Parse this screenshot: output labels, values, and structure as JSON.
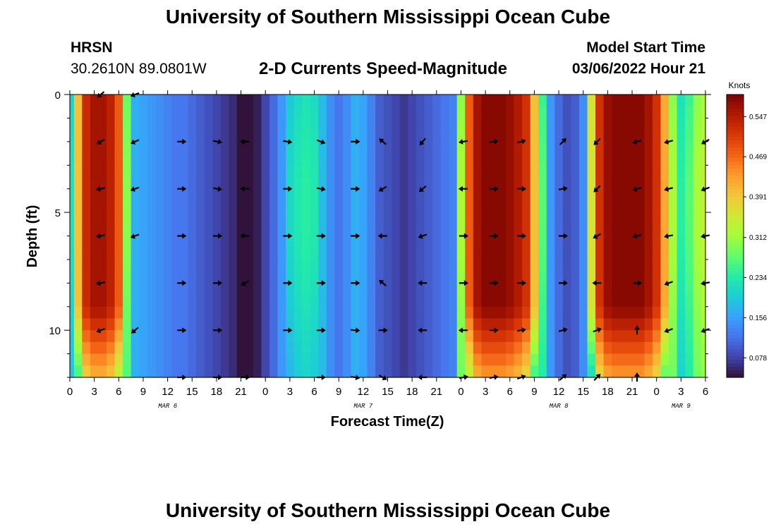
{
  "header": {
    "title": "University of Southern Mississippi Ocean Cube",
    "station": "HRSN",
    "coords": "30.2610N  89.0801W",
    "subtitle": "2-D Currents Speed-Magnitude",
    "model_start_label": "Model Start Time",
    "model_start_value": "03/06/2022 Hour 21"
  },
  "footer": {
    "title": "University of Southern Mississippi Ocean Cube"
  },
  "colors": {
    "colormap": [
      "#30123b",
      "#4145ab",
      "#4675ed",
      "#39a2fc",
      "#1bcfd4",
      "#24eca6",
      "#61fc6c",
      "#a4fc3b",
      "#d1e834",
      "#f3c63a",
      "#fe9b2d",
      "#f36315",
      "#d93806",
      "#b11901",
      "#7a0402"
    ],
    "arrow": "#000000"
  },
  "chart_data": {
    "type": "heatmap",
    "title": "2-D Currents Speed-Magnitude",
    "xlabel": "Forecast Time(Z)",
    "ylabel": "Depth (ft)",
    "x_range_hours": [
      0,
      78
    ],
    "y_range_ft": [
      0,
      12
    ],
    "y_ticks": [
      0,
      5,
      10
    ],
    "x_tick_labels": [
      "0",
      "3",
      "6",
      "9",
      "12",
      "15",
      "18",
      "21",
      "0",
      "3",
      "6",
      "9",
      "12",
      "15",
      "18",
      "21",
      "0",
      "3",
      "6",
      "9",
      "12",
      "15",
      "18",
      "21",
      "0",
      "3",
      "6"
    ],
    "date_labels": [
      {
        "label": "MAR 6",
        "hour": 12
      },
      {
        "label": "MAR 7",
        "hour": 36
      },
      {
        "label": "MAR 8",
        "hour": 60
      },
      {
        "label": "MAR 9",
        "hour": 75
      }
    ],
    "colorbar": {
      "title": "Knots",
      "range": [
        0.04,
        0.59
      ],
      "tick_labels": [
        "0.547",
        "0.469",
        "0.391",
        "0.312",
        "0.234",
        "0.156",
        "0.078"
      ],
      "tick_values": [
        0.547,
        0.469,
        0.391,
        0.312,
        0.234,
        0.156,
        0.078
      ]
    },
    "speed_profile_hours": [
      0,
      1,
      2,
      3,
      4,
      5,
      6,
      7,
      8,
      9,
      10,
      11,
      12,
      13,
      14,
      15,
      16,
      17,
      18,
      19,
      20,
      21,
      22,
      23,
      24,
      25,
      26,
      27,
      28,
      29,
      30,
      31,
      32,
      33,
      34,
      35,
      36,
      37,
      38,
      39,
      40,
      41,
      42,
      43,
      44,
      45,
      46,
      47,
      48,
      49,
      50,
      51,
      52,
      53,
      54,
      55,
      56,
      57,
      58,
      59,
      60,
      61,
      62,
      63,
      64,
      65,
      66,
      67,
      68,
      69,
      70,
      71,
      72,
      73,
      74,
      75,
      76,
      77,
      78
    ],
    "speed_surface_knots": [
      0.2,
      0.4,
      0.53,
      0.56,
      0.56,
      0.54,
      0.48,
      0.28,
      0.17,
      0.16,
      0.15,
      0.14,
      0.13,
      0.12,
      0.12,
      0.11,
      0.1,
      0.09,
      0.08,
      0.07,
      0.06,
      0.04,
      0.03,
      0.05,
      0.08,
      0.11,
      0.15,
      0.19,
      0.21,
      0.22,
      0.21,
      0.18,
      0.14,
      0.12,
      0.14,
      0.17,
      0.16,
      0.13,
      0.1,
      0.09,
      0.08,
      0.07,
      0.08,
      0.09,
      0.1,
      0.11,
      0.12,
      0.13,
      0.3,
      0.48,
      0.56,
      0.58,
      0.58,
      0.58,
      0.57,
      0.55,
      0.52,
      0.4,
      0.25,
      0.15,
      0.11,
      0.09,
      0.1,
      0.14,
      0.36,
      0.52,
      0.57,
      0.58,
      0.58,
      0.58,
      0.58,
      0.56,
      0.52,
      0.42,
      0.3,
      0.22,
      0.25,
      0.3,
      0.32
    ],
    "arrows": [
      {
        "hour": 3.8,
        "depth_ft": 0,
        "angle_deg": 220,
        "speed_knots": 0.52
      },
      {
        "hour": 8.0,
        "depth_ft": 0,
        "angle_deg": 200,
        "speed_knots": 0.17
      },
      {
        "hour": 3.8,
        "depth_ft": 2,
        "angle_deg": 210,
        "speed_knots": 0.52
      },
      {
        "hour": 8.0,
        "depth_ft": 2,
        "angle_deg": 205,
        "speed_knots": 0.17
      },
      {
        "hour": 13.7,
        "depth_ft": 2,
        "angle_deg": 0,
        "speed_knots": 0.12
      },
      {
        "hour": 18.1,
        "depth_ft": 2,
        "angle_deg": 350,
        "speed_knots": 0.08
      },
      {
        "hour": 21.5,
        "depth_ft": 2,
        "angle_deg": 180,
        "speed_knots": 0.05
      },
      {
        "hour": 26.7,
        "depth_ft": 2,
        "angle_deg": 350,
        "speed_knots": 0.15
      },
      {
        "hour": 30.8,
        "depth_ft": 2,
        "angle_deg": 340,
        "speed_knots": 0.21
      },
      {
        "hour": 35.0,
        "depth_ft": 2,
        "angle_deg": 0,
        "speed_knots": 0.15
      },
      {
        "hour": 38.4,
        "depth_ft": 2,
        "angle_deg": 140,
        "speed_knots": 0.13
      },
      {
        "hour": 43.3,
        "depth_ft": 2,
        "angle_deg": 230,
        "speed_knots": 0.09
      },
      {
        "hour": 48.3,
        "depth_ft": 2,
        "angle_deg": 190,
        "speed_knots": 0.13
      },
      {
        "hour": 52.0,
        "depth_ft": 2,
        "angle_deg": 10,
        "speed_knots": 0.58
      },
      {
        "hour": 55.4,
        "depth_ft": 2,
        "angle_deg": 15,
        "speed_knots": 0.57
      },
      {
        "hour": 60.5,
        "depth_ft": 2,
        "angle_deg": 45,
        "speed_knots": 0.15
      },
      {
        "hour": 64.7,
        "depth_ft": 2,
        "angle_deg": 225,
        "speed_knots": 0.36
      },
      {
        "hour": 69.6,
        "depth_ft": 2,
        "angle_deg": 195,
        "speed_knots": 0.58
      },
      {
        "hour": 73.5,
        "depth_ft": 2,
        "angle_deg": 195,
        "speed_knots": 0.42
      },
      {
        "hour": 78.0,
        "depth_ft": 2,
        "angle_deg": 210,
        "speed_knots": 0.32
      },
      {
        "hour": 3.8,
        "depth_ft": 4,
        "angle_deg": 190,
        "speed_knots": 0.52
      },
      {
        "hour": 8.0,
        "depth_ft": 4,
        "angle_deg": 200,
        "speed_knots": 0.17
      },
      {
        "hour": 13.7,
        "depth_ft": 4,
        "angle_deg": 0,
        "speed_knots": 0.12
      },
      {
        "hour": 18.1,
        "depth_ft": 4,
        "angle_deg": 350,
        "speed_knots": 0.08
      },
      {
        "hour": 21.5,
        "depth_ft": 4,
        "angle_deg": 180,
        "speed_knots": 0.05
      },
      {
        "hour": 26.7,
        "depth_ft": 4,
        "angle_deg": 0,
        "speed_knots": 0.15
      },
      {
        "hour": 30.8,
        "depth_ft": 4,
        "angle_deg": 350,
        "speed_knots": 0.21
      },
      {
        "hour": 35.0,
        "depth_ft": 4,
        "angle_deg": 0,
        "speed_knots": 0.15
      },
      {
        "hour": 38.4,
        "depth_ft": 4,
        "angle_deg": 210,
        "speed_knots": 0.13
      },
      {
        "hour": 43.3,
        "depth_ft": 4,
        "angle_deg": 220,
        "speed_knots": 0.09
      },
      {
        "hour": 48.3,
        "depth_ft": 4,
        "angle_deg": 180,
        "speed_knots": 0.13
      },
      {
        "hour": 52.0,
        "depth_ft": 4,
        "angle_deg": 0,
        "speed_knots": 0.58
      },
      {
        "hour": 55.4,
        "depth_ft": 4,
        "angle_deg": 0,
        "speed_knots": 0.57
      },
      {
        "hour": 60.5,
        "depth_ft": 4,
        "angle_deg": 10,
        "speed_knots": 0.15
      },
      {
        "hour": 64.7,
        "depth_ft": 4,
        "angle_deg": 225,
        "speed_knots": 0.36
      },
      {
        "hour": 69.6,
        "depth_ft": 4,
        "angle_deg": 195,
        "speed_knots": 0.58
      },
      {
        "hour": 73.5,
        "depth_ft": 4,
        "angle_deg": 195,
        "speed_knots": 0.42
      },
      {
        "hour": 78.0,
        "depth_ft": 4,
        "angle_deg": 200,
        "speed_knots": 0.32
      },
      {
        "hour": 3.8,
        "depth_ft": 6,
        "angle_deg": 190,
        "speed_knots": 0.52
      },
      {
        "hour": 8.0,
        "depth_ft": 6,
        "angle_deg": 200,
        "speed_knots": 0.17
      },
      {
        "hour": 13.7,
        "depth_ft": 6,
        "angle_deg": 0,
        "speed_knots": 0.12
      },
      {
        "hour": 18.1,
        "depth_ft": 6,
        "angle_deg": 0,
        "speed_knots": 0.08
      },
      {
        "hour": 21.5,
        "depth_ft": 6,
        "angle_deg": 180,
        "speed_knots": 0.05
      },
      {
        "hour": 26.7,
        "depth_ft": 6,
        "angle_deg": 0,
        "speed_knots": 0.15
      },
      {
        "hour": 30.8,
        "depth_ft": 6,
        "angle_deg": 0,
        "speed_knots": 0.21
      },
      {
        "hour": 35.0,
        "depth_ft": 6,
        "angle_deg": 0,
        "speed_knots": 0.15
      },
      {
        "hour": 38.4,
        "depth_ft": 6,
        "angle_deg": 180,
        "speed_knots": 0.13
      },
      {
        "hour": 43.3,
        "depth_ft": 6,
        "angle_deg": 200,
        "speed_knots": 0.09
      },
      {
        "hour": 48.3,
        "depth_ft": 6,
        "angle_deg": 0,
        "speed_knots": 0.13
      },
      {
        "hour": 52.0,
        "depth_ft": 6,
        "angle_deg": 0,
        "speed_knots": 0.58
      },
      {
        "hour": 55.4,
        "depth_ft": 6,
        "angle_deg": 0,
        "speed_knots": 0.57
      },
      {
        "hour": 60.5,
        "depth_ft": 6,
        "angle_deg": 0,
        "speed_knots": 0.15
      },
      {
        "hour": 64.7,
        "depth_ft": 6,
        "angle_deg": 210,
        "speed_knots": 0.36
      },
      {
        "hour": 69.6,
        "depth_ft": 6,
        "angle_deg": 190,
        "speed_knots": 0.58
      },
      {
        "hour": 73.5,
        "depth_ft": 6,
        "angle_deg": 190,
        "speed_knots": 0.42
      },
      {
        "hour": 78.0,
        "depth_ft": 6,
        "angle_deg": 190,
        "speed_knots": 0.32
      },
      {
        "hour": 3.8,
        "depth_ft": 8,
        "angle_deg": 190,
        "speed_knots": 0.52
      },
      {
        "hour": 13.7,
        "depth_ft": 8,
        "angle_deg": 0,
        "speed_knots": 0.12
      },
      {
        "hour": 18.1,
        "depth_ft": 8,
        "angle_deg": 0,
        "speed_knots": 0.08
      },
      {
        "hour": 21.5,
        "depth_ft": 8,
        "angle_deg": 210,
        "speed_knots": 0.05
      },
      {
        "hour": 26.7,
        "depth_ft": 8,
        "angle_deg": 0,
        "speed_knots": 0.15
      },
      {
        "hour": 30.8,
        "depth_ft": 8,
        "angle_deg": 0,
        "speed_knots": 0.21
      },
      {
        "hour": 35.0,
        "depth_ft": 8,
        "angle_deg": 0,
        "speed_knots": 0.15
      },
      {
        "hour": 38.4,
        "depth_ft": 8,
        "angle_deg": 140,
        "speed_knots": 0.13
      },
      {
        "hour": 43.3,
        "depth_ft": 8,
        "angle_deg": 180,
        "speed_knots": 0.09
      },
      {
        "hour": 48.3,
        "depth_ft": 8,
        "angle_deg": 0,
        "speed_knots": 0.13
      },
      {
        "hour": 52.0,
        "depth_ft": 8,
        "angle_deg": 0,
        "speed_knots": 0.58
      },
      {
        "hour": 55.4,
        "depth_ft": 8,
        "angle_deg": 0,
        "speed_knots": 0.57
      },
      {
        "hour": 60.5,
        "depth_ft": 8,
        "angle_deg": 0,
        "speed_knots": 0.15
      },
      {
        "hour": 64.7,
        "depth_ft": 8,
        "angle_deg": 180,
        "speed_knots": 0.36
      },
      {
        "hour": 69.6,
        "depth_ft": 8,
        "angle_deg": 0,
        "speed_knots": 0.58
      },
      {
        "hour": 73.5,
        "depth_ft": 8,
        "angle_deg": 200,
        "speed_knots": 0.42
      },
      {
        "hour": 78.0,
        "depth_ft": 8,
        "angle_deg": 190,
        "speed_knots": 0.32
      },
      {
        "hour": 3.8,
        "depth_ft": 10,
        "angle_deg": 200,
        "speed_knots": 0.52
      },
      {
        "hour": 8.0,
        "depth_ft": 10,
        "angle_deg": 220,
        "speed_knots": 0.17
      },
      {
        "hour": 13.7,
        "depth_ft": 10,
        "angle_deg": 0,
        "speed_knots": 0.12
      },
      {
        "hour": 18.1,
        "depth_ft": 10,
        "angle_deg": 0,
        "speed_knots": 0.08
      },
      {
        "hour": 26.7,
        "depth_ft": 10,
        "angle_deg": 0,
        "speed_knots": 0.15
      },
      {
        "hour": 30.8,
        "depth_ft": 10,
        "angle_deg": 0,
        "speed_knots": 0.21
      },
      {
        "hour": 35.0,
        "depth_ft": 10,
        "angle_deg": 355,
        "speed_knots": 0.15
      },
      {
        "hour": 38.4,
        "depth_ft": 10,
        "angle_deg": 0,
        "speed_knots": 0.13
      },
      {
        "hour": 43.3,
        "depth_ft": 10,
        "angle_deg": 180,
        "speed_knots": 0.09
      },
      {
        "hour": 48.3,
        "depth_ft": 10,
        "angle_deg": 180,
        "speed_knots": 0.13
      },
      {
        "hour": 52.0,
        "depth_ft": 10,
        "angle_deg": 0,
        "speed_knots": 0.58
      },
      {
        "hour": 55.4,
        "depth_ft": 10,
        "angle_deg": 10,
        "speed_knots": 0.57
      },
      {
        "hour": 60.5,
        "depth_ft": 10,
        "angle_deg": 15,
        "speed_knots": 0.15
      },
      {
        "hour": 64.7,
        "depth_ft": 10,
        "angle_deg": 20,
        "speed_knots": 0.36
      },
      {
        "hour": 69.6,
        "depth_ft": 10,
        "angle_deg": 90,
        "speed_knots": 0.58
      },
      {
        "hour": 73.5,
        "depth_ft": 10,
        "angle_deg": 200,
        "speed_knots": 0.42
      },
      {
        "hour": 78.0,
        "depth_ft": 10,
        "angle_deg": 200,
        "speed_knots": 0.32
      },
      {
        "hour": 13.7,
        "depth_ft": 12,
        "angle_deg": 0,
        "speed_knots": 0.12
      },
      {
        "hour": 18.1,
        "depth_ft": 12,
        "angle_deg": 0,
        "speed_knots": 0.08
      },
      {
        "hour": 21.5,
        "depth_ft": 12,
        "angle_deg": 0,
        "speed_knots": 0.05
      },
      {
        "hour": 30.8,
        "depth_ft": 12,
        "angle_deg": 0,
        "speed_knots": 0.21
      },
      {
        "hour": 35.0,
        "depth_ft": 12,
        "angle_deg": 350,
        "speed_knots": 0.15
      },
      {
        "hour": 38.4,
        "depth_ft": 12,
        "angle_deg": 330,
        "speed_knots": 0.13
      },
      {
        "hour": 43.3,
        "depth_ft": 12,
        "angle_deg": 180,
        "speed_knots": 0.09
      },
      {
        "hour": 48.3,
        "depth_ft": 12,
        "angle_deg": 10,
        "speed_knots": 0.13
      },
      {
        "hour": 52.0,
        "depth_ft": 12,
        "angle_deg": 10,
        "speed_knots": 0.58
      },
      {
        "hour": 55.4,
        "depth_ft": 12,
        "angle_deg": 20,
        "speed_knots": 0.57
      },
      {
        "hour": 60.5,
        "depth_ft": 12,
        "angle_deg": 40,
        "speed_knots": 0.15
      },
      {
        "hour": 64.7,
        "depth_ft": 12,
        "angle_deg": 45,
        "speed_knots": 0.36
      },
      {
        "hour": 69.6,
        "depth_ft": 12,
        "angle_deg": 90,
        "speed_knots": 0.58
      }
    ]
  }
}
